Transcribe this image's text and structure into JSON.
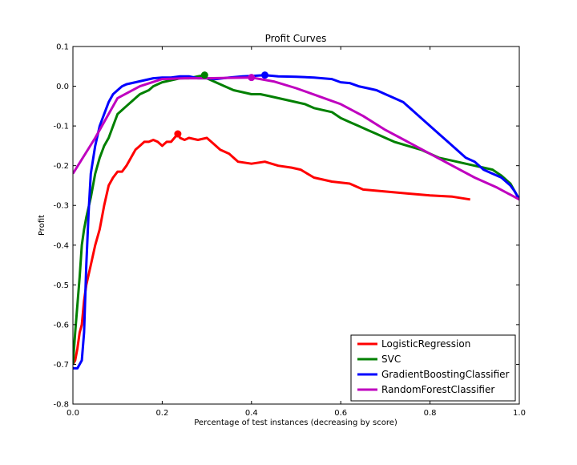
{
  "chart_data": {
    "type": "line",
    "title": "Profit Curves",
    "xlabel": "Percentage of test instances (decreasing by score)",
    "ylabel": "Profit",
    "xlim": [
      0.0,
      1.0
    ],
    "ylim": [
      -0.8,
      0.1
    ],
    "xticks": [
      "0.0",
      "0.2",
      "0.4",
      "0.6",
      "0.8",
      "1.0"
    ],
    "yticks": [
      "0.1",
      "0.0",
      "-0.1",
      "-0.2",
      "-0.3",
      "-0.4",
      "-0.5",
      "-0.6",
      "-0.7",
      "-0.8"
    ],
    "grid": false,
    "legend_position": "lower-right",
    "series": [
      {
        "name": "LogisticRegression",
        "color": "#ff0000",
        "max_point": [
          0.235,
          -0.12
        ],
        "points": [
          [
            0.0,
            -0.7
          ],
          [
            0.005,
            -0.69
          ],
          [
            0.01,
            -0.66
          ],
          [
            0.015,
            -0.62
          ],
          [
            0.02,
            -0.6
          ],
          [
            0.025,
            -0.54
          ],
          [
            0.03,
            -0.5
          ],
          [
            0.04,
            -0.45
          ],
          [
            0.05,
            -0.4
          ],
          [
            0.06,
            -0.36
          ],
          [
            0.07,
            -0.3
          ],
          [
            0.08,
            -0.25
          ],
          [
            0.09,
            -0.23
          ],
          [
            0.1,
            -0.215
          ],
          [
            0.11,
            -0.215
          ],
          [
            0.12,
            -0.2
          ],
          [
            0.13,
            -0.18
          ],
          [
            0.14,
            -0.16
          ],
          [
            0.15,
            -0.15
          ],
          [
            0.16,
            -0.14
          ],
          [
            0.17,
            -0.14
          ],
          [
            0.18,
            -0.135
          ],
          [
            0.19,
            -0.14
          ],
          [
            0.2,
            -0.15
          ],
          [
            0.21,
            -0.14
          ],
          [
            0.22,
            -0.14
          ],
          [
            0.235,
            -0.12
          ],
          [
            0.24,
            -0.13
          ],
          [
            0.25,
            -0.135
          ],
          [
            0.26,
            -0.13
          ],
          [
            0.28,
            -0.135
          ],
          [
            0.3,
            -0.13
          ],
          [
            0.31,
            -0.14
          ],
          [
            0.33,
            -0.16
          ],
          [
            0.35,
            -0.17
          ],
          [
            0.37,
            -0.19
          ],
          [
            0.4,
            -0.195
          ],
          [
            0.43,
            -0.19
          ],
          [
            0.46,
            -0.2
          ],
          [
            0.49,
            -0.205
          ],
          [
            0.51,
            -0.21
          ],
          [
            0.54,
            -0.23
          ],
          [
            0.58,
            -0.24
          ],
          [
            0.62,
            -0.245
          ],
          [
            0.65,
            -0.26
          ],
          [
            0.7,
            -0.265
          ],
          [
            0.75,
            -0.27
          ],
          [
            0.8,
            -0.275
          ],
          [
            0.85,
            -0.278
          ],
          [
            0.89,
            -0.285
          ]
        ]
      },
      {
        "name": "SVC",
        "color": "#008000",
        "max_point": [
          0.295,
          0.028
        ],
        "points": [
          [
            0.0,
            -0.7
          ],
          [
            0.005,
            -0.62
          ],
          [
            0.01,
            -0.55
          ],
          [
            0.015,
            -0.48
          ],
          [
            0.02,
            -0.4
          ],
          [
            0.025,
            -0.36
          ],
          [
            0.03,
            -0.33
          ],
          [
            0.04,
            -0.28
          ],
          [
            0.05,
            -0.22
          ],
          [
            0.06,
            -0.18
          ],
          [
            0.07,
            -0.15
          ],
          [
            0.08,
            -0.13
          ],
          [
            0.09,
            -0.1
          ],
          [
            0.1,
            -0.07
          ],
          [
            0.11,
            -0.06
          ],
          [
            0.12,
            -0.05
          ],
          [
            0.13,
            -0.04
          ],
          [
            0.14,
            -0.03
          ],
          [
            0.15,
            -0.02
          ],
          [
            0.16,
            -0.015
          ],
          [
            0.17,
            -0.01
          ],
          [
            0.18,
            0.0
          ],
          [
            0.19,
            0.005
          ],
          [
            0.2,
            0.01
          ],
          [
            0.22,
            0.015
          ],
          [
            0.24,
            0.02
          ],
          [
            0.26,
            0.02
          ],
          [
            0.28,
            0.025
          ],
          [
            0.295,
            0.028
          ],
          [
            0.3,
            0.02
          ],
          [
            0.32,
            0.01
          ],
          [
            0.34,
            0.0
          ],
          [
            0.36,
            -0.01
          ],
          [
            0.38,
            -0.015
          ],
          [
            0.4,
            -0.02
          ],
          [
            0.42,
            -0.02
          ],
          [
            0.44,
            -0.025
          ],
          [
            0.46,
            -0.03
          ],
          [
            0.48,
            -0.035
          ],
          [
            0.5,
            -0.04
          ],
          [
            0.52,
            -0.045
          ],
          [
            0.54,
            -0.055
          ],
          [
            0.56,
            -0.06
          ],
          [
            0.58,
            -0.065
          ],
          [
            0.6,
            -0.08
          ],
          [
            0.62,
            -0.09
          ],
          [
            0.64,
            -0.1
          ],
          [
            0.66,
            -0.11
          ],
          [
            0.68,
            -0.12
          ],
          [
            0.7,
            -0.13
          ],
          [
            0.72,
            -0.14
          ],
          [
            0.75,
            -0.15
          ],
          [
            0.78,
            -0.16
          ],
          [
            0.8,
            -0.17
          ],
          [
            0.82,
            -0.18
          ],
          [
            0.84,
            -0.185
          ],
          [
            0.86,
            -0.19
          ],
          [
            0.88,
            -0.195
          ],
          [
            0.9,
            -0.2
          ],
          [
            0.92,
            -0.205
          ],
          [
            0.94,
            -0.21
          ],
          [
            0.96,
            -0.225
          ],
          [
            0.98,
            -0.245
          ],
          [
            0.99,
            -0.265
          ],
          [
            1.0,
            -0.285
          ]
        ]
      },
      {
        "name": "GradientBoostingClassifier",
        "color": "#0000ff",
        "max_point": [
          0.43,
          0.028
        ],
        "points": [
          [
            0.0,
            -0.71
          ],
          [
            0.01,
            -0.71
          ],
          [
            0.02,
            -0.69
          ],
          [
            0.025,
            -0.62
          ],
          [
            0.03,
            -0.45
          ],
          [
            0.035,
            -0.32
          ],
          [
            0.04,
            -0.22
          ],
          [
            0.05,
            -0.15
          ],
          [
            0.06,
            -0.1
          ],
          [
            0.07,
            -0.07
          ],
          [
            0.08,
            -0.04
          ],
          [
            0.09,
            -0.02
          ],
          [
            0.1,
            -0.01
          ],
          [
            0.11,
            0.0
          ],
          [
            0.12,
            0.005
          ],
          [
            0.14,
            0.01
          ],
          [
            0.16,
            0.015
          ],
          [
            0.18,
            0.02
          ],
          [
            0.2,
            0.022
          ],
          [
            0.22,
            0.022
          ],
          [
            0.24,
            0.025
          ],
          [
            0.26,
            0.025
          ],
          [
            0.28,
            0.02
          ],
          [
            0.3,
            0.02
          ],
          [
            0.32,
            0.018
          ],
          [
            0.35,
            0.022
          ],
          [
            0.38,
            0.025
          ],
          [
            0.4,
            0.026
          ],
          [
            0.43,
            0.028
          ],
          [
            0.46,
            0.025
          ],
          [
            0.5,
            0.024
          ],
          [
            0.54,
            0.022
          ],
          [
            0.58,
            0.018
          ],
          [
            0.6,
            0.01
          ],
          [
            0.62,
            0.008
          ],
          [
            0.64,
            0.0
          ],
          [
            0.66,
            -0.005
          ],
          [
            0.68,
            -0.01
          ],
          [
            0.7,
            -0.02
          ],
          [
            0.72,
            -0.03
          ],
          [
            0.74,
            -0.04
          ],
          [
            0.76,
            -0.06
          ],
          [
            0.78,
            -0.08
          ],
          [
            0.8,
            -0.1
          ],
          [
            0.82,
            -0.12
          ],
          [
            0.84,
            -0.14
          ],
          [
            0.86,
            -0.16
          ],
          [
            0.88,
            -0.18
          ],
          [
            0.9,
            -0.19
          ],
          [
            0.92,
            -0.21
          ],
          [
            0.94,
            -0.22
          ],
          [
            0.96,
            -0.23
          ],
          [
            0.98,
            -0.25
          ],
          [
            0.99,
            -0.265
          ],
          [
            1.0,
            -0.285
          ]
        ]
      },
      {
        "name": "RandomForestClassifier",
        "color": "#bf00bf",
        "max_point": [
          0.4,
          0.022
        ],
        "points": [
          [
            0.0,
            -0.22
          ],
          [
            0.05,
            -0.13
          ],
          [
            0.1,
            -0.03
          ],
          [
            0.15,
            0.0
          ],
          [
            0.2,
            0.018
          ],
          [
            0.25,
            0.02
          ],
          [
            0.3,
            0.02
          ],
          [
            0.35,
            0.021
          ],
          [
            0.4,
            0.022
          ],
          [
            0.45,
            0.012
          ],
          [
            0.5,
            -0.005
          ],
          [
            0.55,
            -0.025
          ],
          [
            0.6,
            -0.045
          ],
          [
            0.65,
            -0.075
          ],
          [
            0.7,
            -0.11
          ],
          [
            0.75,
            -0.14
          ],
          [
            0.8,
            -0.17
          ],
          [
            0.85,
            -0.2
          ],
          [
            0.9,
            -0.23
          ],
          [
            0.95,
            -0.255
          ],
          [
            1.0,
            -0.285
          ]
        ]
      }
    ]
  }
}
